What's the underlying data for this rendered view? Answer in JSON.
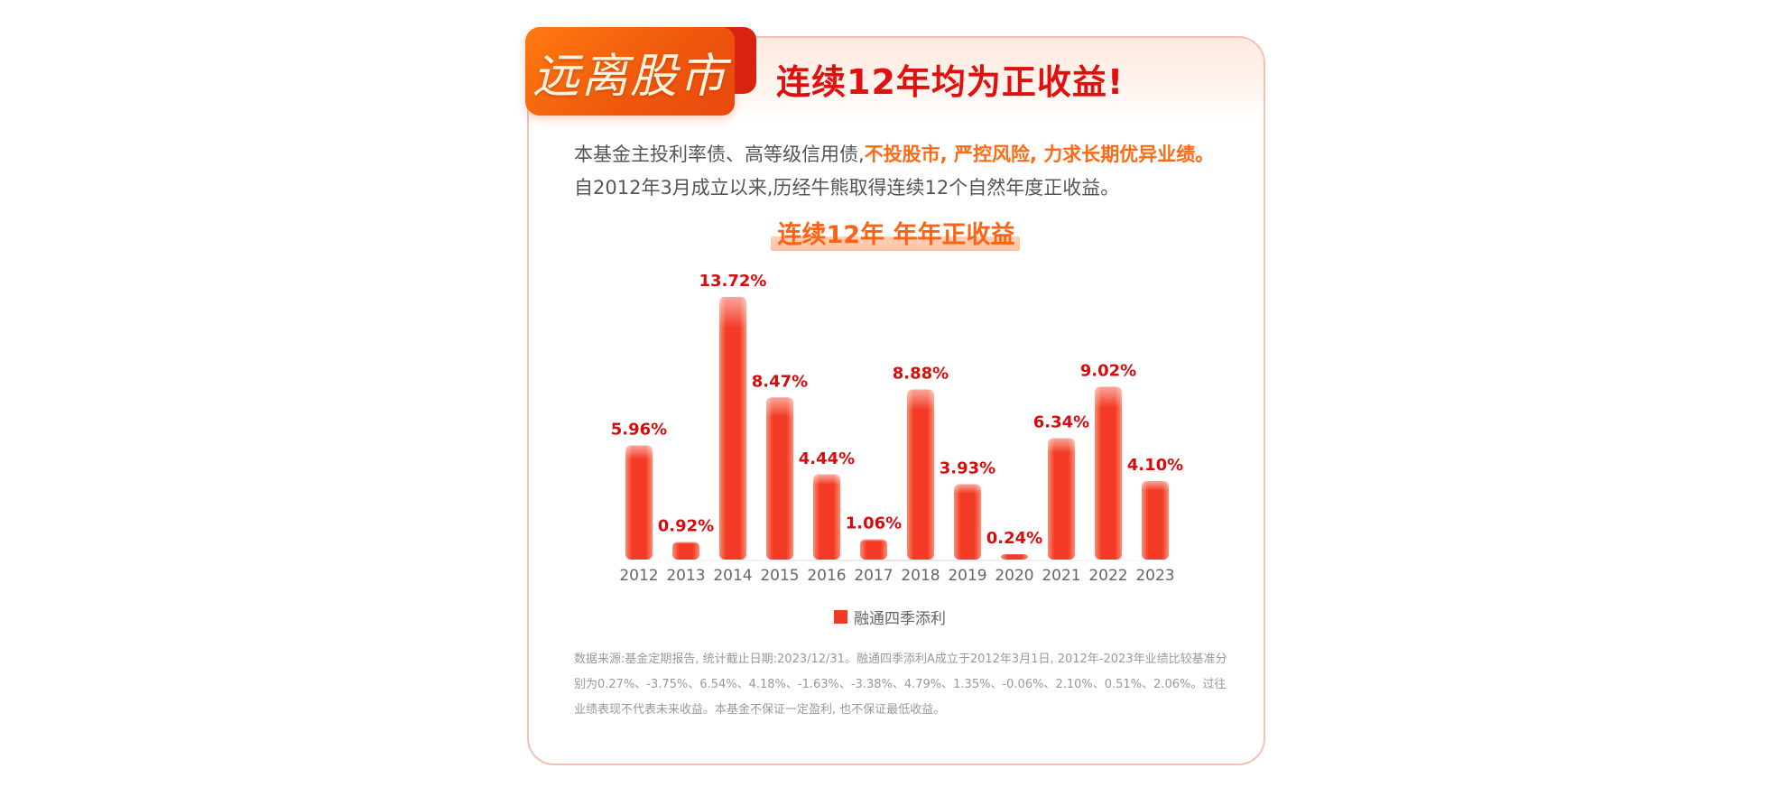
{
  "header": {
    "tag": "远离股市",
    "headline": "连续12年均为正收益!"
  },
  "intro": {
    "line1_normal": "本基金主投利率债、高等级信用债,",
    "line1_highlight": "不投股市, 严控风险, 力求长期优异业绩。",
    "line2": "自2012年3月成立以来,历经牛熊取得连续12个自然年度正收益。"
  },
  "chart_title": "连续12年  年年正收益",
  "legend": {
    "label": "融通四季添利"
  },
  "footnote": "数据来源:基金定期报告, 统计截止日期:2023/12/31。融通四季添利A成立于2012年3月1日, 2012年-2023年业绩比较基准分别为0.27%、-3.75%、6.54%、4.18%、-1.63%、-3.38%、4.79%、1.35%、-0.06%、2.10%、0.51%、2.06%。过往业绩表现不代表未来收益。本基金不保证一定盈利, 也不保证最低收益。",
  "colors": {
    "accent_red": "#e0100e",
    "accent_orange": "#ff6a14",
    "bar_red": "#f03a26",
    "label_red": "#d70c0c"
  },
  "chart_data": {
    "type": "bar",
    "title": "连续12年  年年正收益",
    "categories": [
      "2012",
      "2013",
      "2014",
      "2015",
      "2016",
      "2017",
      "2018",
      "2019",
      "2020",
      "2021",
      "2022",
      "2023"
    ],
    "series": [
      {
        "name": "融通四季添利",
        "values": [
          5.96,
          0.92,
          13.72,
          8.47,
          4.44,
          1.06,
          8.88,
          3.93,
          0.24,
          6.34,
          9.02,
          4.1
        ],
        "labels": [
          "5.96%",
          "0.92%",
          "13.72%",
          "8.47%",
          "4.44%",
          "1.06%",
          "8.88%",
          "3.93%",
          "0.24%",
          "6.34%",
          "9.02%",
          "4.10%"
        ]
      }
    ],
    "xlabel": "",
    "ylabel": "",
    "ylim": [
      0,
      14
    ],
    "grid": false,
    "legend": "bottom"
  }
}
